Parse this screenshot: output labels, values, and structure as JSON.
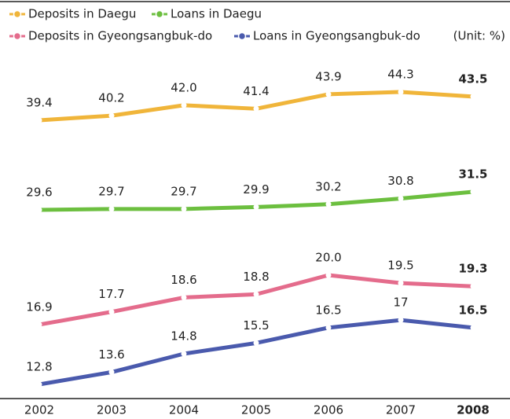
{
  "chart_data": {
    "type": "line",
    "unit_label": "(Unit: %)",
    "categories": [
      "2002",
      "2003",
      "2004",
      "2005",
      "2006",
      "2007",
      "2008"
    ],
    "series": [
      {
        "name": "Deposits in Daegu",
        "color": "#f0b53a",
        "values": [
          39.4,
          40.2,
          42.0,
          41.4,
          43.9,
          44.3,
          43.5
        ],
        "value_labels": [
          "39.4",
          "40.2",
          "42.0",
          "41.4",
          "43.9",
          "44.3",
          "43.5"
        ]
      },
      {
        "name": "Loans in Daegu",
        "color": "#6cbf3f",
        "values": [
          29.6,
          29.7,
          29.7,
          29.9,
          30.2,
          30.8,
          31.5
        ]
      },
      {
        "name": "Deposits in Gyeongsangbuk-do",
        "color": "#e46c8c",
        "values": [
          16.9,
          17.7,
          18.6,
          18.8,
          20.0,
          19.5,
          19.3
        ],
        "value_labels": [
          "16.9",
          "17.7",
          "18.6",
          "18.8",
          "20.0",
          "19.5",
          "19.3"
        ]
      },
      {
        "name": "Loans in Gyeongsangbuk-do",
        "color": "#4a5aad",
        "values": [
          12.8,
          13.6,
          14.8,
          15.5,
          16.5,
          17.0,
          16.5
        ]
      }
    ]
  }
}
